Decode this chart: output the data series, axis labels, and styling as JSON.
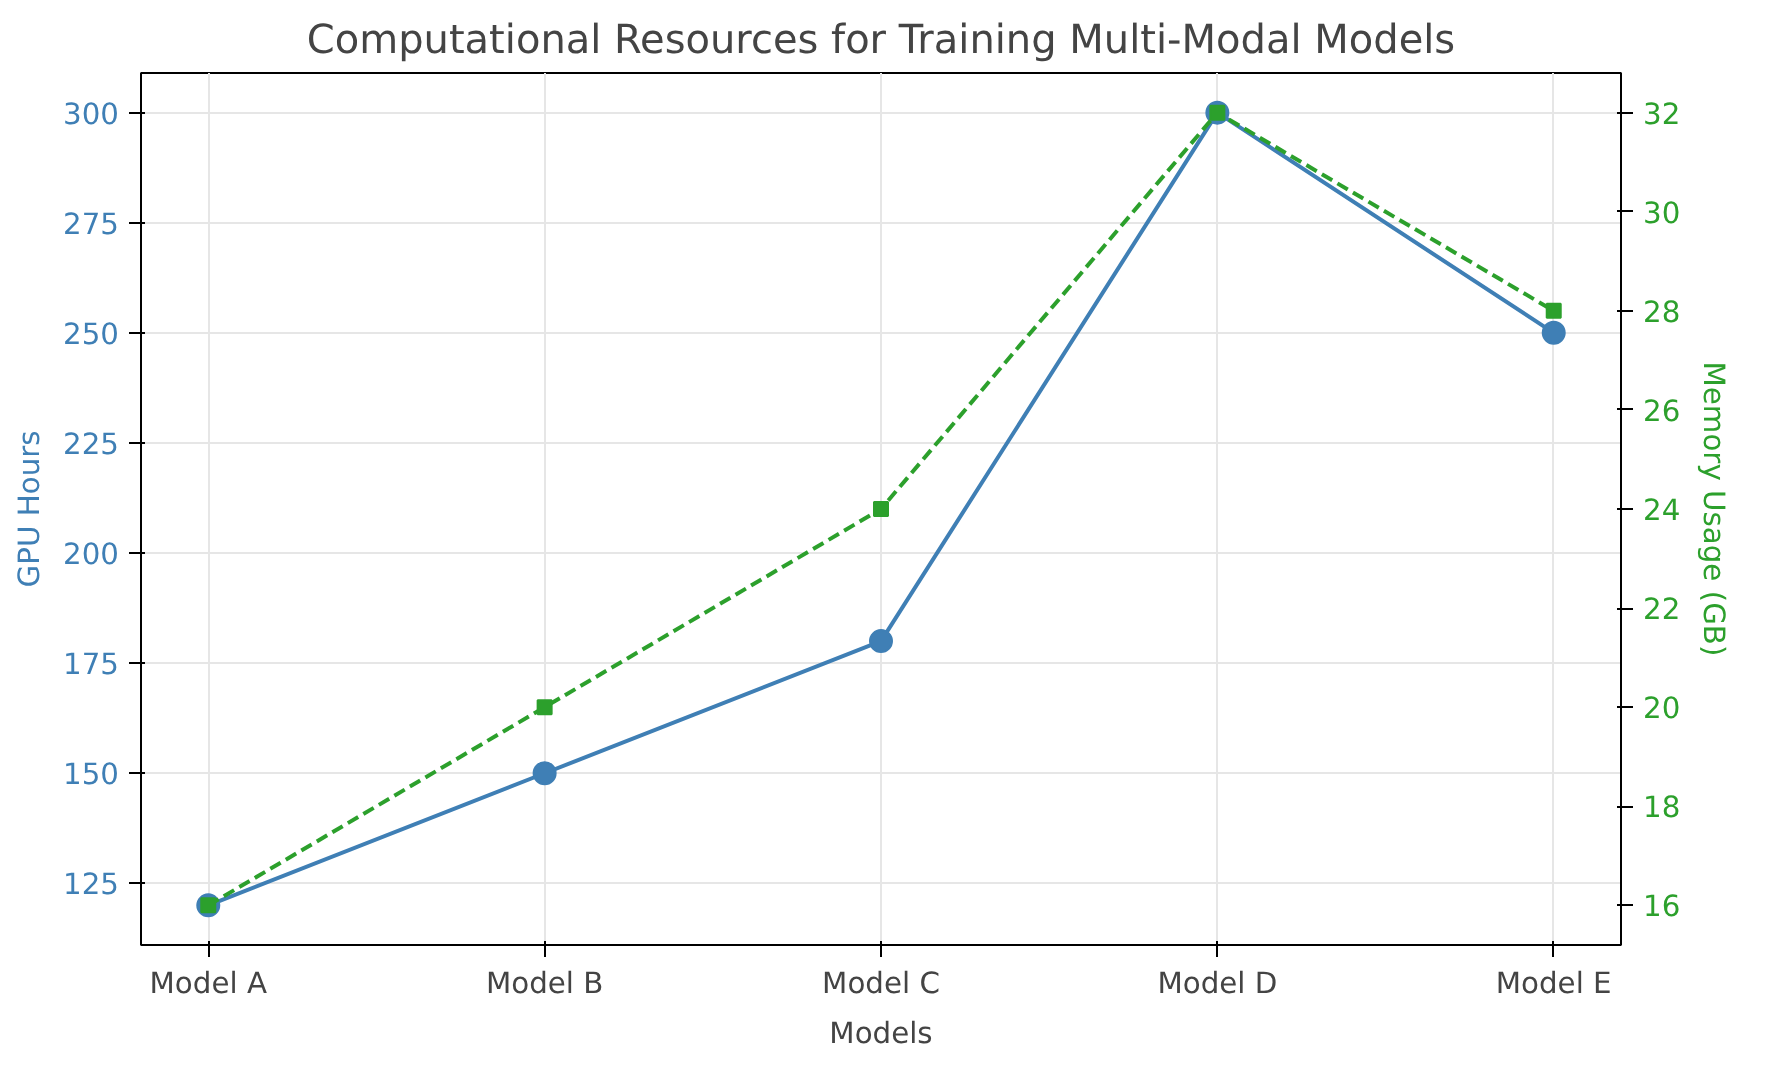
{
  "chart_data": {
    "type": "line",
    "title": "Computational Resources for Training Multi-Modal Models",
    "xlabel": "Models",
    "ylabel": "GPU Hours",
    "y2label": "Memory Usage (GB)",
    "categories": [
      "Model A",
      "Model B",
      "Model C",
      "Model D",
      "Model E"
    ],
    "series": [
      {
        "color": "#3f7fb5",
        "values": [
          120,
          150,
          180,
          300,
          250
        ],
        "marker": "circle",
        "line_style": "solid"
      },
      {
        "color": "#2ca02c",
        "values": [
          16,
          20,
          24,
          32,
          28
        ],
        "marker": "square",
        "line_style": "dashed",
        "axis": "y2"
      }
    ],
    "ylim": [
      111,
      309
    ],
    "yticks": [
      125,
      150,
      175,
      200,
      225,
      250,
      275,
      300
    ],
    "y2lim": [
      15.2,
      32.8
    ],
    "y2ticks": [
      16,
      18,
      20,
      22,
      24,
      26,
      28,
      30,
      32
    ],
    "grid": true
  }
}
